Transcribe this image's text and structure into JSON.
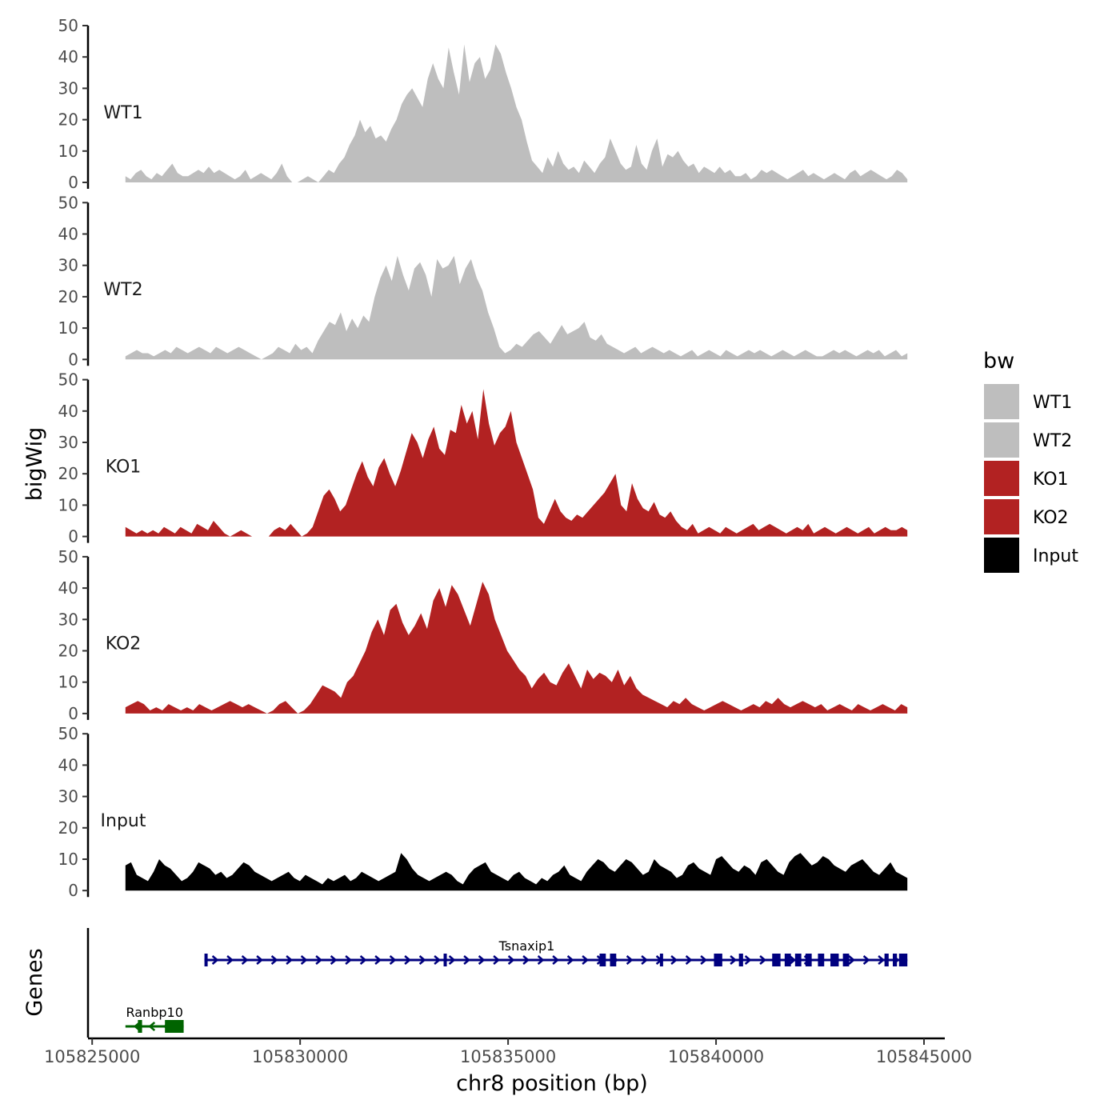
{
  "chart_data": {
    "type": "area",
    "xlabel": "chr8 position (bp)",
    "ylabel": "bigWig",
    "genes_label": "Genes",
    "xlim": [
      105824900,
      105845500
    ],
    "ylim": [
      0,
      50
    ],
    "x_ticks": [
      105825000,
      105830000,
      105835000,
      105840000,
      105845000
    ],
    "x_tick_labels": [
      "105825000",
      "105830000",
      "105835000",
      "105840000",
      "105845000"
    ],
    "y_ticks": [
      0,
      10,
      20,
      30,
      40,
      50
    ],
    "y_tick_labels": [
      "0",
      "10",
      "20",
      "30",
      "40",
      "50"
    ],
    "x_domain": [
      105825800,
      105844600
    ],
    "legend": {
      "title": "bw",
      "position": "right",
      "entries": [
        {
          "label": "WT1",
          "color": "#bebebe"
        },
        {
          "label": "WT2",
          "color": "#bebebe"
        },
        {
          "label": "KO1",
          "color": "#b22222"
        },
        {
          "label": "KO2",
          "color": "#b22222"
        },
        {
          "label": "Input",
          "color": "#000000"
        }
      ]
    },
    "series": [
      {
        "name": "WT1",
        "color": "#bebebe",
        "values": [
          2,
          1,
          3,
          4,
          2,
          1,
          3,
          2,
          4,
          6,
          3,
          2,
          2,
          3,
          4,
          3,
          5,
          3,
          4,
          3,
          2,
          1,
          2,
          4,
          1,
          2,
          3,
          2,
          1,
          3,
          6,
          2,
          0,
          0,
          1,
          2,
          1,
          0,
          2,
          4,
          3,
          6,
          8,
          12,
          15,
          20,
          16,
          18,
          14,
          15,
          13,
          17,
          20,
          25,
          28,
          30,
          27,
          24,
          33,
          38,
          33,
          30,
          43,
          35,
          28,
          44,
          32,
          38,
          40,
          33,
          36,
          44,
          41,
          35,
          30,
          24,
          20,
          13,
          7,
          5,
          3,
          8,
          5,
          10,
          6,
          4,
          5,
          3,
          7,
          5,
          3,
          6,
          8,
          14,
          10,
          6,
          4,
          5,
          12,
          6,
          4,
          10,
          14,
          5,
          9,
          8,
          10,
          7,
          5,
          6,
          3,
          5,
          4,
          3,
          5,
          3,
          4,
          2,
          2,
          3,
          1,
          2,
          4,
          3,
          4,
          3,
          2,
          1,
          2,
          3,
          4,
          2,
          3,
          2,
          1,
          2,
          3,
          2,
          1,
          3,
          4,
          2,
          3,
          4,
          3,
          2,
          1,
          2,
          4,
          3,
          1
        ]
      },
      {
        "name": "WT2",
        "color": "#bebebe",
        "values": [
          1,
          2,
          3,
          2,
          2,
          1,
          2,
          3,
          2,
          4,
          3,
          2,
          3,
          4,
          3,
          2,
          4,
          3,
          2,
          3,
          4,
          3,
          2,
          1,
          0,
          1,
          2,
          4,
          3,
          2,
          5,
          3,
          4,
          2,
          6,
          9,
          12,
          11,
          15,
          9,
          13,
          10,
          14,
          12,
          20,
          26,
          30,
          25,
          33,
          27,
          22,
          29,
          31,
          27,
          20,
          32,
          29,
          30,
          33,
          24,
          29,
          32,
          26,
          22,
          15,
          10,
          4,
          2,
          3,
          5,
          4,
          6,
          8,
          9,
          7,
          5,
          8,
          11,
          8,
          9,
          10,
          12,
          7,
          6,
          8,
          5,
          4,
          3,
          2,
          3,
          4,
          2,
          3,
          4,
          3,
          2,
          3,
          2,
          1,
          2,
          3,
          1,
          2,
          3,
          2,
          1,
          3,
          2,
          1,
          2,
          3,
          2,
          3,
          2,
          1,
          2,
          3,
          2,
          1,
          2,
          3,
          2,
          1,
          1,
          2,
          3,
          2,
          3,
          2,
          1,
          2,
          3,
          2,
          3,
          1,
          2,
          3,
          1,
          2
        ]
      },
      {
        "name": "KO1",
        "color": "#b22222",
        "values": [
          3,
          2,
          1,
          2,
          1,
          2,
          1,
          3,
          2,
          1,
          3,
          2,
          1,
          4,
          3,
          2,
          5,
          3,
          1,
          0,
          1,
          2,
          1,
          0,
          0,
          0,
          0,
          2,
          3,
          2,
          4,
          2,
          0,
          1,
          3,
          8,
          13,
          15,
          12,
          8,
          10,
          15,
          20,
          24,
          19,
          16,
          22,
          25,
          20,
          16,
          21,
          27,
          33,
          30,
          25,
          31,
          35,
          28,
          26,
          34,
          33,
          42,
          36,
          40,
          31,
          47,
          36,
          29,
          33,
          35,
          40,
          30,
          25,
          20,
          15,
          6,
          4,
          8,
          12,
          8,
          6,
          5,
          7,
          6,
          8,
          10,
          12,
          14,
          17,
          20,
          10,
          8,
          17,
          12,
          9,
          8,
          11,
          7,
          6,
          8,
          5,
          3,
          2,
          4,
          1,
          2,
          3,
          2,
          1,
          3,
          2,
          1,
          2,
          3,
          4,
          2,
          3,
          4,
          3,
          2,
          1,
          2,
          3,
          2,
          4,
          1,
          2,
          3,
          2,
          1,
          2,
          3,
          2,
          1,
          2,
          3,
          1,
          2,
          3,
          2,
          2,
          3,
          2
        ]
      },
      {
        "name": "KO2",
        "color": "#b22222",
        "values": [
          2,
          3,
          4,
          3,
          1,
          2,
          1,
          3,
          2,
          1,
          2,
          1,
          3,
          2,
          1,
          2,
          3,
          4,
          3,
          2,
          3,
          2,
          1,
          0,
          1,
          3,
          4,
          2,
          0,
          1,
          3,
          6,
          9,
          8,
          7,
          5,
          10,
          12,
          16,
          20,
          26,
          30,
          25,
          33,
          35,
          29,
          25,
          28,
          32,
          27,
          36,
          40,
          34,
          41,
          38,
          33,
          28,
          35,
          42,
          38,
          30,
          25,
          20,
          17,
          14,
          12,
          8,
          11,
          13,
          10,
          9,
          13,
          16,
          12,
          8,
          14,
          11,
          13,
          12,
          10,
          14,
          9,
          12,
          8,
          6,
          5,
          4,
          3,
          2,
          4,
          3,
          5,
          3,
          2,
          1,
          2,
          3,
          4,
          3,
          2,
          1,
          2,
          3,
          2,
          4,
          3,
          5,
          3,
          2,
          3,
          4,
          3,
          2,
          3,
          1,
          2,
          3,
          2,
          1,
          3,
          2,
          1,
          2,
          3,
          2,
          1,
          3,
          2
        ]
      },
      {
        "name": "Input",
        "color": "#000000",
        "values": [
          8,
          9,
          5,
          4,
          3,
          6,
          10,
          8,
          7,
          5,
          3,
          4,
          6,
          9,
          8,
          7,
          5,
          6,
          4,
          5,
          7,
          9,
          8,
          6,
          5,
          4,
          3,
          4,
          5,
          6,
          4,
          3,
          5,
          4,
          3,
          2,
          4,
          3,
          4,
          5,
          3,
          4,
          6,
          5,
          4,
          3,
          4,
          5,
          6,
          12,
          10,
          7,
          5,
          4,
          3,
          4,
          5,
          6,
          5,
          3,
          2,
          5,
          7,
          8,
          9,
          6,
          5,
          4,
          3,
          5,
          6,
          4,
          3,
          2,
          4,
          3,
          5,
          6,
          8,
          5,
          4,
          3,
          6,
          8,
          10,
          9,
          7,
          6,
          8,
          10,
          9,
          7,
          5,
          6,
          10,
          8,
          7,
          6,
          4,
          5,
          8,
          9,
          7,
          6,
          5,
          10,
          11,
          9,
          7,
          6,
          8,
          7,
          5,
          9,
          10,
          8,
          6,
          5,
          9,
          11,
          12,
          10,
          8,
          9,
          11,
          10,
          8,
          7,
          6,
          8,
          9,
          10,
          8,
          6,
          5,
          7,
          9,
          6,
          5,
          4
        ]
      }
    ],
    "genes": [
      {
        "name": "Tsnaxip1",
        "strand": "+",
        "color": "#00007f",
        "start": 105827700,
        "end": 105844600,
        "exons": [
          [
            105827700,
            105827760
          ],
          [
            105833450,
            105833500
          ],
          [
            105837200,
            105837350
          ],
          [
            105837450,
            105837600
          ],
          [
            105838650,
            105838700
          ],
          [
            105839950,
            105840150
          ],
          [
            105840550,
            105840650
          ],
          [
            105841350,
            105841550
          ],
          [
            105841650,
            105841800
          ],
          [
            105841900,
            105842050
          ],
          [
            105842150,
            105842300
          ],
          [
            105842450,
            105842600
          ],
          [
            105842750,
            105842950
          ],
          [
            105843050,
            105843200
          ],
          [
            105844050,
            105844150
          ],
          [
            105844250,
            105844350
          ],
          [
            105844400,
            105844600
          ]
        ],
        "label_x": 105835450
      },
      {
        "name": "Ranbp10",
        "strand": "-",
        "color": "#006400",
        "start": 105825800,
        "end": 105827200,
        "exons": [
          [
            105826100,
            105826200
          ],
          [
            105826750,
            105827200
          ]
        ],
        "label_x": 105826500
      }
    ]
  }
}
